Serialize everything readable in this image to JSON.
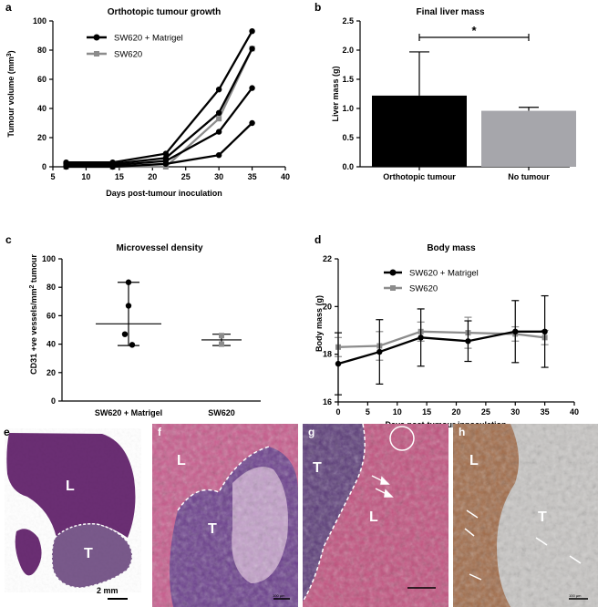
{
  "colors": {
    "black": "#000000",
    "grey": "#8c8c8c",
    "bar_black": "#000000",
    "bar_grey": "#a6a6ab",
    "he_pink": "#c85a8c",
    "he_purple": "#6a3d8c",
    "ihc_brown": "#9a5a33",
    "ihc_bg": "#c8c6c4"
  },
  "panel_letters": [
    "a",
    "b",
    "c",
    "d",
    "e",
    "f",
    "g",
    "h"
  ],
  "chart_data": [
    {
      "panel": "a",
      "type": "line",
      "title": "Orthotopic tumour growth",
      "xlabel": "Days post-tumour inoculation",
      "ylabel_parts": [
        "Tumour volume (mm",
        "3",
        ")"
      ],
      "xlim": [
        5,
        40
      ],
      "ylim": [
        0,
        100
      ],
      "xticks": [
        5,
        10,
        15,
        20,
        25,
        30,
        35,
        40
      ],
      "yticks": [
        0,
        20,
        40,
        60,
        80,
        100
      ],
      "legend": [
        "SW620 + Matrigel",
        "SW620"
      ],
      "legend_position": "top-left",
      "series": [
        {
          "name": "SW620 + Matrigel",
          "color": "black",
          "marker": "circle",
          "x": [
            7,
            14,
            22,
            30,
            35
          ],
          "y": [
            3,
            3,
            9,
            53,
            93
          ]
        },
        {
          "color": "black",
          "marker": "circle",
          "x": [
            7,
            14,
            22,
            30,
            35
          ],
          "y": [
            2,
            2,
            6,
            37,
            81
          ]
        },
        {
          "color": "black",
          "marker": "circle",
          "x": [
            7,
            14,
            22,
            30,
            35
          ],
          "y": [
            1,
            1,
            4,
            24,
            54
          ]
        },
        {
          "color": "black",
          "marker": "circle",
          "x": [
            7,
            14,
            22,
            30,
            35
          ],
          "y": [
            0,
            0,
            2,
            8,
            30
          ]
        },
        {
          "name": "SW620",
          "color": "grey",
          "marker": "square",
          "x": [
            7,
            14,
            22,
            30,
            35
          ],
          "y": [
            0,
            0,
            0,
            33,
            81
          ]
        }
      ]
    },
    {
      "panel": "b",
      "type": "bar",
      "title": "Final liver mass",
      "xlabel": "",
      "ylabel": "Liver mass (g)",
      "categories": [
        "Orthotopic tumour",
        "No tumour"
      ],
      "values": [
        1.22,
        0.96
      ],
      "errors": [
        0.75,
        0.06
      ],
      "ylim": [
        0,
        2.5
      ],
      "yticks": [
        "0.0",
        "0.5",
        "1.0",
        "1.5",
        "2.0",
        "2.5"
      ],
      "significance": "*"
    },
    {
      "panel": "c",
      "type": "scatter",
      "title": "Microvessel density",
      "xlabel": "",
      "ylabel_parts": [
        "CD31 +ve vessels/mm",
        "2",
        " tumour"
      ],
      "categories": [
        "SW620 + Matrigel",
        "SW620"
      ],
      "ylim": [
        0,
        100
      ],
      "yticks": [
        0,
        20,
        40,
        60,
        80,
        100
      ],
      "groups": [
        {
          "category": "SW620 + Matrigel",
          "marker": "circle",
          "color": "black",
          "points": [
            83.5,
            67,
            47,
            39.5
          ],
          "mean": 54.3,
          "sd_low": 39,
          "sd_high": 83.5
        },
        {
          "category": "SW620",
          "marker": "square",
          "color": "grey",
          "points": [
            46,
            40
          ],
          "mean": 43,
          "sd_low": 39,
          "sd_high": 47
        }
      ]
    },
    {
      "panel": "d",
      "type": "line",
      "title": "Body mass",
      "xlabel": "Days post-tumour innoculation",
      "ylabel": "Body mass (g)",
      "xlim": [
        0,
        40
      ],
      "ylim": [
        16,
        22
      ],
      "xticks": [
        0,
        5,
        10,
        15,
        20,
        25,
        30,
        35,
        40
      ],
      "yticks": [
        16,
        18,
        20,
        22
      ],
      "legend": [
        "SW620 + Matrigel",
        "SW620"
      ],
      "legend_position": "top-left",
      "series": [
        {
          "name": "SW620 + Matrigel",
          "color": "black",
          "marker": "circle",
          "x": [
            0,
            7,
            14,
            22,
            30,
            35
          ],
          "y": [
            17.6,
            18.1,
            18.7,
            18.55,
            18.95,
            18.95
          ],
          "err": [
            1.3,
            1.35,
            1.2,
            0.85,
            1.3,
            1.5
          ]
        },
        {
          "name": "SW620",
          "color": "grey",
          "marker": "square",
          "x": [
            0,
            7,
            14,
            22,
            30,
            35
          ],
          "y": [
            18.3,
            18.35,
            18.95,
            18.9,
            18.85,
            18.7
          ],
          "err": [
            0.4,
            0.6,
            0.4,
            0.65,
            0.3,
            0.3
          ]
        }
      ]
    }
  ],
  "micrographs": {
    "e": {
      "labels": [
        "L",
        "T"
      ],
      "scale_bar": "2 mm"
    },
    "f": {
      "labels": [
        "L",
        "T"
      ],
      "scale_bar": "100 µm"
    },
    "g": {
      "labels": [
        "T",
        "L"
      ],
      "scale_bar": ""
    },
    "h": {
      "labels": [
        "L",
        "T"
      ],
      "scale_bar": "100 µm"
    }
  }
}
